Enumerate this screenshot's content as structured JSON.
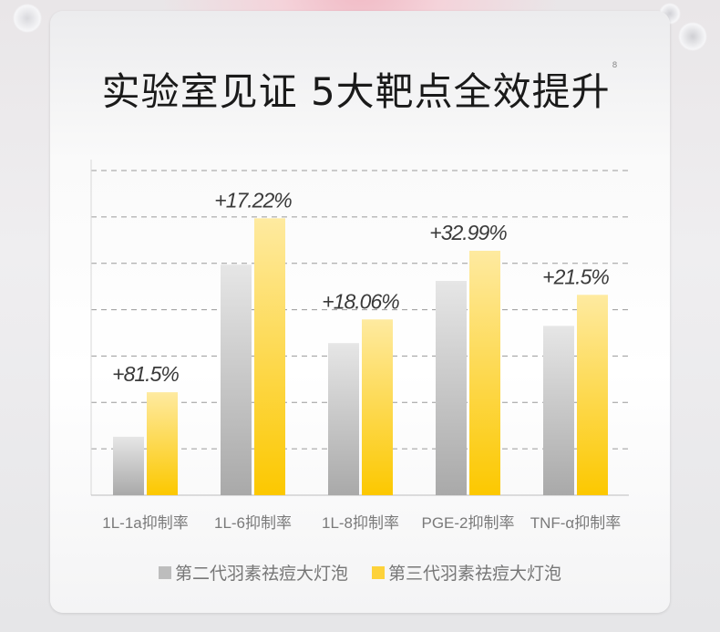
{
  "title": "实验室见证 5大靶点全效提升",
  "title_footnote": "8",
  "chart_data": {
    "type": "bar",
    "title": "实验室见证 5大靶点全效提升",
    "categories": [
      "1L-1a抑制率",
      "1L-6抑制率",
      "1L-8抑制率",
      "PGE-2抑制率",
      "TNF-α抑制率"
    ],
    "series": [
      {
        "name": "第二代羽素祛痘大灯泡",
        "values": [
          1.26,
          4.97,
          3.28,
          4.62,
          3.65
        ],
        "color": "#b5b5b5"
      },
      {
        "name": "第三代羽素祛痘大灯泡",
        "values": [
          2.22,
          5.97,
          3.79,
          5.27,
          4.32
        ],
        "color": "#fdd23a"
      }
    ],
    "data_labels": [
      "+81.5%",
      "+17.22%",
      "+18.06%",
      "+32.99%",
      "+21.5%"
    ],
    "ylim": [
      0,
      7
    ],
    "y_unit_note": "no y-axis values printed; bar heights in gridline units",
    "grid": true,
    "grid_style": "dashed",
    "legend_position": "bottom",
    "xlabel": "",
    "ylabel": ""
  }
}
